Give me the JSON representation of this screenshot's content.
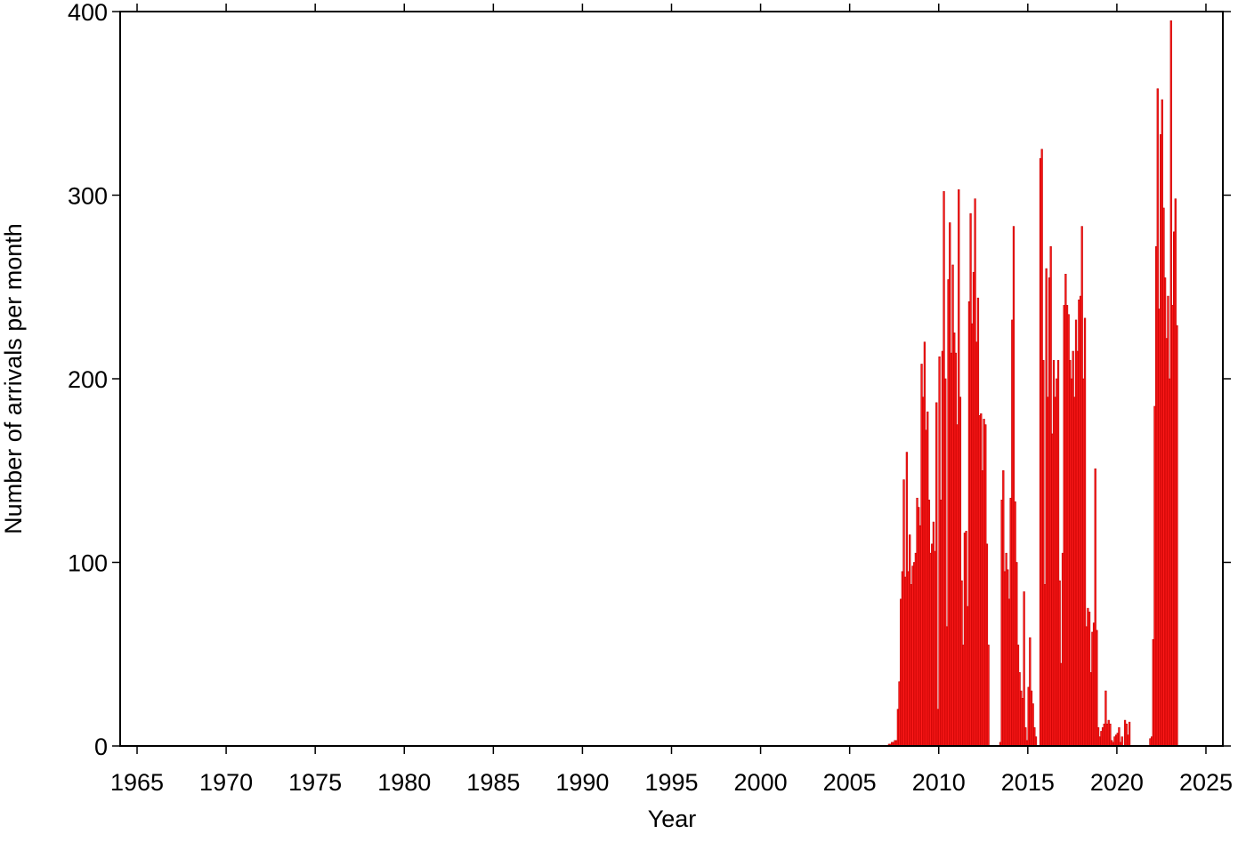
{
  "chart_data": {
    "type": "histogram",
    "x_label": "Year",
    "y_label": "Number of arrivals per month",
    "color": "#ff1a1a",
    "xlim": [
      1964.05,
      2025.95
    ],
    "ylim": [
      0,
      400
    ],
    "xticks": [
      1965,
      1970,
      1975,
      1980,
      1985,
      1990,
      1995,
      2000,
      2005,
      2010,
      2015,
      2020,
      2025
    ],
    "yticks": [
      0,
      100,
      200,
      300,
      400
    ],
    "bins": [
      2007,
      2007.083,
      2007.167,
      2007.25,
      2007.333,
      2007.417,
      2007.5,
      2007.583,
      2007.667,
      2007.75,
      2007.833,
      2007.917,
      2008,
      2008.083,
      2008.167,
      2008.25,
      2008.333,
      2008.417,
      2008.5,
      2008.583,
      2008.667,
      2008.75,
      2008.833,
      2008.917,
      2009,
      2009.083,
      2009.167,
      2009.25,
      2009.333,
      2009.417,
      2009.5,
      2009.583,
      2009.667,
      2009.75,
      2009.833,
      2009.917,
      2010,
      2010.083,
      2010.167,
      2010.25,
      2010.333,
      2010.417,
      2010.5,
      2010.583,
      2010.667,
      2010.75,
      2010.833,
      2010.917,
      2011,
      2011.083,
      2011.167,
      2011.25,
      2011.333,
      2011.417,
      2011.5,
      2011.583,
      2011.667,
      2011.75,
      2011.833,
      2011.917,
      2012,
      2012.083,
      2012.167,
      2012.25,
      2012.333,
      2012.417,
      2012.5,
      2012.583,
      2012.667,
      2012.75,
      2012.833,
      2012.917,
      2013,
      2013.083,
      2013.167,
      2013.25,
      2013.333,
      2013.417,
      2013.5,
      2013.583,
      2013.667,
      2013.75,
      2013.833,
      2013.917,
      2014,
      2014.083,
      2014.167,
      2014.25,
      2014.333,
      2014.417,
      2014.5,
      2014.583,
      2014.667,
      2014.75,
      2014.833,
      2014.917,
      2015,
      2015.083,
      2015.167,
      2015.25,
      2015.333,
      2015.417,
      2015.5,
      2015.583,
      2015.667,
      2015.75,
      2015.833,
      2015.917,
      2016,
      2016.083,
      2016.167,
      2016.25,
      2016.333,
      2016.417,
      2016.5,
      2016.583,
      2016.667,
      2016.75,
      2016.833,
      2016.917,
      2017,
      2017.083,
      2017.167,
      2017.25,
      2017.333,
      2017.417,
      2017.5,
      2017.583,
      2017.667,
      2017.75,
      2017.833,
      2017.917,
      2018,
      2018.083,
      2018.167,
      2018.25,
      2018.333,
      2018.417,
      2018.5,
      2018.583,
      2018.667,
      2018.75,
      2018.833,
      2018.917,
      2019,
      2019.083,
      2019.167,
      2019.25,
      2019.333,
      2019.417,
      2019.5,
      2019.583,
      2019.667,
      2019.75,
      2019.833,
      2019.917,
      2020,
      2020.083,
      2020.167,
      2020.25,
      2020.333,
      2020.417,
      2020.5,
      2020.583,
      2020.667,
      2020.75,
      2020.833,
      2020.917,
      2021,
      2021.083,
      2021.167,
      2021.25,
      2021.333,
      2021.417,
      2021.5,
      2021.583,
      2021.667,
      2021.75,
      2021.833,
      2021.917,
      2022,
      2022.083,
      2022.167,
      2022.25,
      2022.333,
      2022.417,
      2022.5,
      2022.583,
      2022.667,
      2022.75,
      2022.833,
      2022.917,
      2023,
      2023.083,
      2023.167,
      2023.25,
      2023.333,
      2023.417
    ],
    "values": [
      0,
      0,
      1,
      1,
      2,
      2,
      3,
      3,
      20,
      35,
      80,
      95,
      145,
      92,
      160,
      95,
      115,
      88,
      98,
      100,
      105,
      135,
      130,
      120,
      208,
      190,
      220,
      172,
      182,
      134,
      105,
      110,
      122,
      106,
      187,
      20,
      212,
      134,
      215,
      302,
      200,
      65,
      254,
      285,
      214,
      262,
      225,
      214,
      175,
      303,
      190,
      90,
      55,
      116,
      117,
      76,
      242,
      290,
      230,
      258,
      298,
      220,
      244,
      180,
      181,
      150,
      178,
      175,
      110,
      55,
      0,
      0,
      0,
      0,
      0,
      0,
      0,
      2,
      134,
      150,
      95,
      105,
      96,
      80,
      135,
      232,
      283,
      133,
      100,
      55,
      40,
      30,
      26,
      84,
      10,
      3,
      32,
      59,
      30,
      23,
      10,
      5,
      0,
      0,
      320,
      325,
      210,
      88,
      260,
      190,
      255,
      272,
      170,
      210,
      190,
      200,
      210,
      90,
      45,
      105,
      240,
      257,
      240,
      235,
      210,
      200,
      215,
      190,
      232,
      215,
      243,
      245,
      283,
      200,
      233,
      65,
      75,
      73,
      40,
      62,
      67,
      151,
      63,
      10,
      5,
      8,
      10,
      12,
      30,
      12,
      14,
      12,
      3,
      2,
      5,
      6,
      7,
      10,
      2,
      5,
      0,
      14,
      12,
      6,
      13,
      0,
      0,
      0,
      0,
      0,
      0,
      0,
      0,
      0,
      0,
      0,
      0,
      0,
      4,
      5,
      58,
      185,
      272,
      358,
      238,
      333,
      352,
      293,
      255,
      222,
      245,
      200,
      395,
      240,
      280,
      298,
      229
    ]
  }
}
